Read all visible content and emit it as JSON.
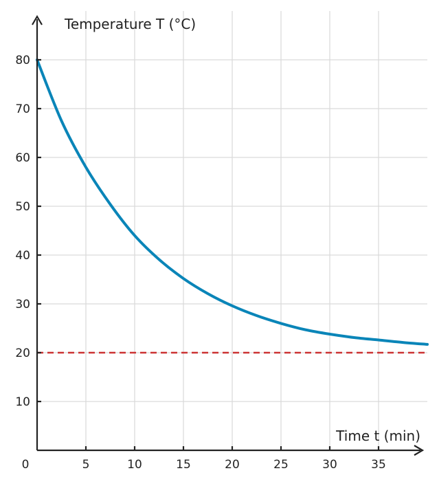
{
  "chart_data": {
    "type": "line",
    "xlabel": "Time t (min)",
    "ylabel": "Temperature T (°C)",
    "xlim": [
      0,
      40
    ],
    "ylim": [
      0,
      80
    ],
    "origin_label": "0",
    "xticks": [
      5,
      10,
      15,
      20,
      25,
      30,
      35
    ],
    "yticks": [
      10,
      20,
      30,
      40,
      50,
      60,
      70,
      80
    ],
    "grid": true,
    "series": [
      {
        "color": "#0a85b8",
        "style": "solid",
        "x": [
          0,
          2.5,
          5,
          7.5,
          10,
          12.5,
          15,
          17.5,
          20,
          22.5,
          25,
          27.5,
          30,
          32.5,
          35,
          37.5,
          40
        ],
        "y": [
          80,
          67.5,
          58.0,
          50.4,
          44.0,
          39.1,
          35.2,
          32.1,
          29.6,
          27.6,
          26.0,
          24.7,
          23.8,
          23.1,
          22.6,
          22.1,
          21.7
        ]
      },
      {
        "color": "#cc3333",
        "style": "dashed",
        "x": [
          0,
          40
        ],
        "y": [
          20,
          20
        ]
      }
    ]
  }
}
